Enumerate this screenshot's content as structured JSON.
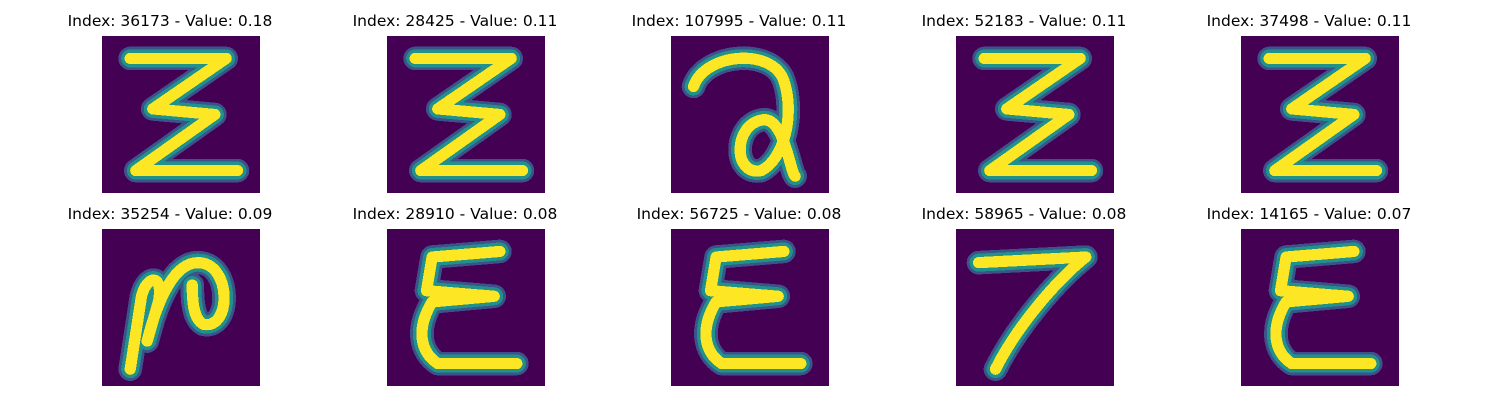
{
  "colors": {
    "background": "#440154",
    "stroke_mid": "#21918c",
    "stroke_edge": "#3b528b",
    "stroke_core": "#fde725"
  },
  "panels": [
    {
      "title": "Index: 36173 - Value: 0.18",
      "glyph": "3",
      "index": 36173,
      "value": 0.18
    },
    {
      "title": "Index: 28425 - Value: 0.11",
      "glyph": "3",
      "index": 28425,
      "value": 0.11
    },
    {
      "title": "Index: 107995 - Value: 0.11",
      "glyph": "a",
      "index": 107995,
      "value": 0.11
    },
    {
      "title": "Index: 52183 - Value: 0.11",
      "glyph": "3",
      "index": 52183,
      "value": 0.11
    },
    {
      "title": "Index: 37498 - Value: 0.11",
      "glyph": "3",
      "index": 37498,
      "value": 0.11
    },
    {
      "title": "Index: 35254 - Value: 0.09",
      "glyph": "N",
      "index": 35254,
      "value": 0.09
    },
    {
      "title": "Index: 28910 - Value: 0.08",
      "glyph": "E",
      "index": 28910,
      "value": 0.08
    },
    {
      "title": "Index: 56725 - Value: 0.08",
      "glyph": "E",
      "index": 56725,
      "value": 0.08
    },
    {
      "title": "Index: 58965 - Value: 0.08",
      "glyph": "7",
      "index": 58965,
      "value": 0.08
    },
    {
      "title": "Index: 14165 - Value: 0.07",
      "glyph": "E",
      "index": 14165,
      "value": 0.07
    }
  ]
}
